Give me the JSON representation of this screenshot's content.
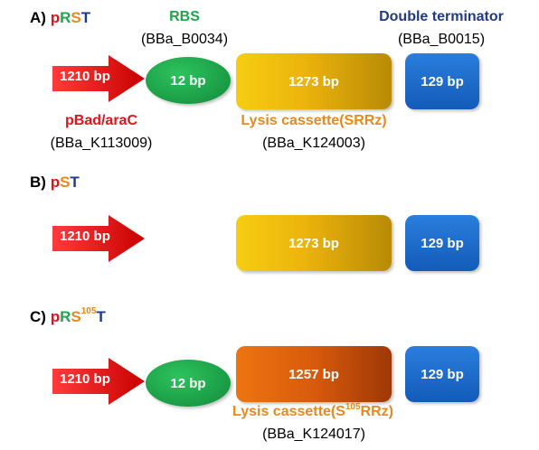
{
  "colors": {
    "promoter": "#e3121b",
    "rbs": "#1aa84a",
    "lysis_label": "#e9881c",
    "terminator_label": "#1f3a8c",
    "terminator_box": "#1a66c8",
    "lysis_yellow": "#f3c20e",
    "lysis_orange": "#ea6a10"
  },
  "panel_a": {
    "tag": "A)",
    "name_p": "p",
    "name_r": "R",
    "name_s": "S",
    "name_t": "T",
    "promoter_size": "1210 bp",
    "promoter_name": "pBad/araC",
    "promoter_code": "(BBa_K113009)",
    "rbs_label": "RBS",
    "rbs_code": "(BBa_B0034)",
    "rbs_size": "12 bp",
    "lysis_size": "1273 bp",
    "lysis_name": "Lysis cassette(SRRz)",
    "lysis_code": "(BBa_K124003)",
    "terminator_label": "Double terminator",
    "terminator_code": "(BBa_B0015)",
    "terminator_size": "129 bp"
  },
  "panel_b": {
    "tag": "B)",
    "name_p": "p",
    "name_s": "S",
    "name_t": "T",
    "promoter_size": "1210 bp",
    "lysis_size": "1273 bp",
    "terminator_size": "129 bp"
  },
  "panel_c": {
    "tag": "C)",
    "name_p": "p",
    "name_r": "R",
    "name_s": "S",
    "name_sup": "105",
    "name_t": "T",
    "promoter_size": "1210 bp",
    "rbs_size": "12 bp",
    "lysis_size": "1257 bp",
    "lysis_name_pre": "Lysis cassette(S",
    "lysis_name_sup": "105",
    "lysis_name_post": "RRz)",
    "lysis_code": "(BBa_K124017)",
    "terminator_size": "129 bp"
  }
}
